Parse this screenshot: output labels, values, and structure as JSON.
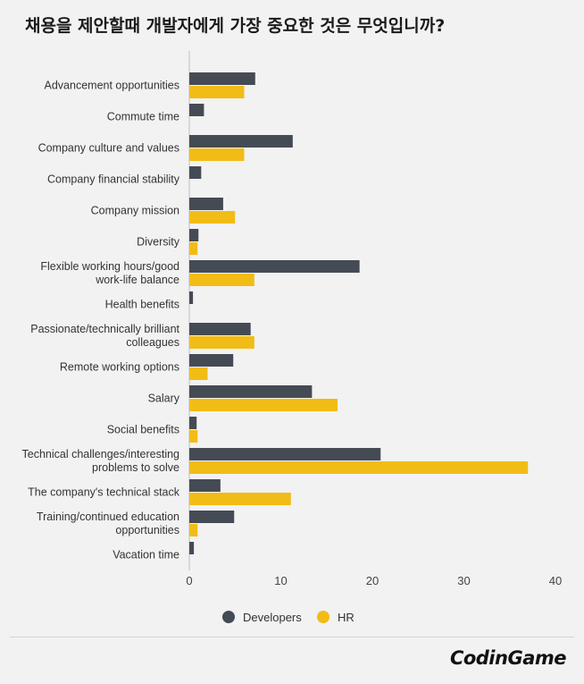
{
  "title": "채용을 제안할때 개발자에게 가장 중요한 것은 무엇입니까?",
  "logo": "CodinGame",
  "colors": {
    "developers": "#454b55",
    "hr": "#f2bc16",
    "axis": "#bdbdbd",
    "background": "#f2f2f2"
  },
  "chart_data": {
    "type": "bar",
    "orientation": "horizontal",
    "title": "채용을 제안할때 개발자에게 가장 중요한 것은 무엇입니까?",
    "xlim": [
      0,
      40
    ],
    "xticks": [
      0,
      10,
      20,
      30,
      40
    ],
    "legend_position": "bottom-center",
    "categories": [
      "Advancement opportunities",
      "Commute time",
      "Company culture and values",
      "Company financial stability",
      "Company mission",
      "Diversity",
      "Flexible working hours/good work-life balance",
      "Health benefits",
      "Passionate/technically brilliant colleagues",
      "Remote working options",
      "Salary",
      "Social benefits",
      "Technical challenges/interesting problems to solve",
      "The company's technical stack",
      "Training/continued education opportunities",
      "Vacation time"
    ],
    "series": [
      {
        "name": "Developers",
        "values": [
          7.2,
          1.6,
          11.3,
          1.3,
          3.7,
          1.0,
          18.6,
          0.4,
          6.7,
          4.8,
          13.4,
          0.8,
          20.9,
          3.4,
          4.9,
          0.5
        ]
      },
      {
        "name": "HR",
        "values": [
          6.0,
          0,
          6.0,
          0,
          5.0,
          0.9,
          7.1,
          0,
          7.1,
          2.0,
          16.2,
          0.9,
          37.0,
          11.1,
          0.9,
          0
        ]
      }
    ]
  }
}
